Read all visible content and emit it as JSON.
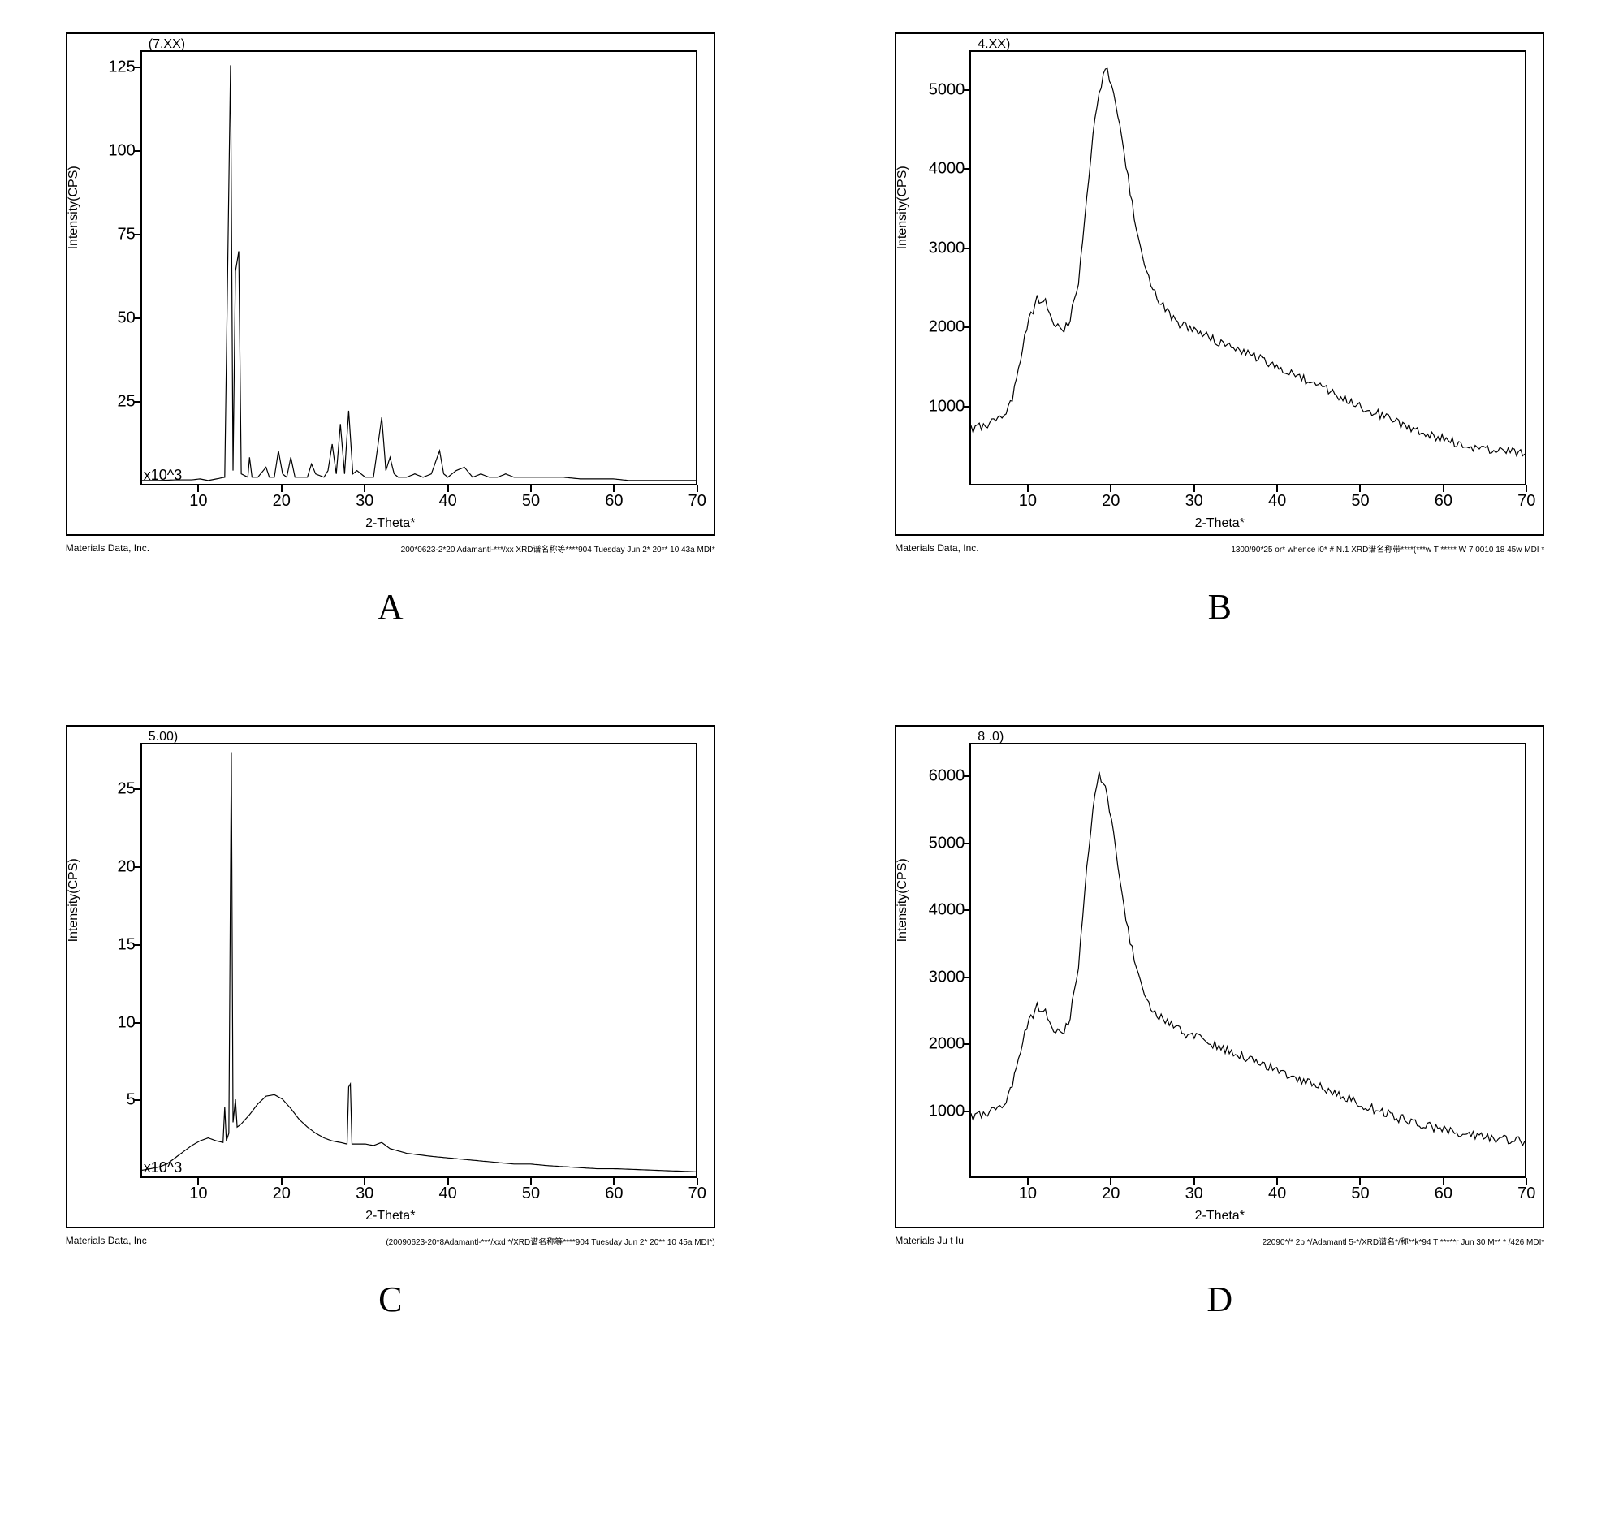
{
  "global": {
    "background_color": "#ffffff",
    "trace_color": "#000000",
    "border_color": "#000000",
    "font_family": "Arial",
    "figure_label_font": "Times New Roman",
    "figure_label_fontsize": 44,
    "tick_fontsize": 20,
    "axis_label_fontsize": 16
  },
  "panels": {
    "A": {
      "label": "A",
      "type": "xrd-line",
      "top_annotation": "(7.XX)",
      "xlabel": "2-Theta*",
      "ylabel": "Intensity(CPS)",
      "x_multiplier": "x10^3",
      "xlim": [
        3,
        70
      ],
      "ylim": [
        0,
        130
      ],
      "xticks": [
        10,
        20,
        30,
        40,
        50,
        60,
        70
      ],
      "yticks": [
        25,
        50,
        75,
        100,
        125
      ],
      "footer_left": "Materials Data, Inc.",
      "footer_right": "200*0623-2*20 Adamantl-***/xx XRD谱名称等****904 Tuesday Jun 2* 20** 10 43a MDI*",
      "trace": [
        [
          3,
          1
        ],
        [
          5,
          1
        ],
        [
          7,
          1.2
        ],
        [
          9,
          1.2
        ],
        [
          10,
          1.5
        ],
        [
          11,
          1
        ],
        [
          12,
          1.5
        ],
        [
          13,
          2
        ],
        [
          13.7,
          126
        ],
        [
          14,
          4
        ],
        [
          14.3,
          64
        ],
        [
          14.7,
          70
        ],
        [
          15,
          3
        ],
        [
          15.8,
          2
        ],
        [
          16,
          8
        ],
        [
          16.3,
          2
        ],
        [
          17,
          2
        ],
        [
          18,
          5
        ],
        [
          18.4,
          2
        ],
        [
          19,
          2
        ],
        [
          19.5,
          10
        ],
        [
          20,
          3
        ],
        [
          20.5,
          2
        ],
        [
          21,
          8
        ],
        [
          21.5,
          2
        ],
        [
          22,
          2
        ],
        [
          23,
          2
        ],
        [
          23.5,
          6
        ],
        [
          24,
          3
        ],
        [
          25,
          2
        ],
        [
          25.5,
          4
        ],
        [
          26,
          12
        ],
        [
          26.5,
          3
        ],
        [
          27,
          18
        ],
        [
          27.5,
          3
        ],
        [
          28,
          22
        ],
        [
          28.5,
          3
        ],
        [
          29,
          4
        ],
        [
          30,
          2
        ],
        [
          31,
          2
        ],
        [
          32,
          20
        ],
        [
          32.5,
          4
        ],
        [
          33,
          8
        ],
        [
          33.5,
          3
        ],
        [
          34,
          2
        ],
        [
          35,
          2
        ],
        [
          36,
          3
        ],
        [
          37,
          2
        ],
        [
          38,
          3
        ],
        [
          39,
          10
        ],
        [
          39.5,
          3
        ],
        [
          40,
          2
        ],
        [
          41,
          4
        ],
        [
          42,
          5
        ],
        [
          43,
          2
        ],
        [
          44,
          3
        ],
        [
          45,
          2
        ],
        [
          46,
          2
        ],
        [
          47,
          3
        ],
        [
          48,
          2
        ],
        [
          49,
          2
        ],
        [
          50,
          2
        ],
        [
          52,
          2
        ],
        [
          54,
          2
        ],
        [
          56,
          1.5
        ],
        [
          58,
          1.5
        ],
        [
          60,
          1.5
        ],
        [
          62,
          1
        ],
        [
          65,
          1
        ],
        [
          68,
          1
        ],
        [
          70,
          1
        ]
      ]
    },
    "B": {
      "label": "B",
      "type": "xrd-line",
      "top_annotation": "4.XX)",
      "xlabel": "2-Theta*",
      "ylabel": "Intensity(CPS)",
      "xlim": [
        3,
        70
      ],
      "ylim": [
        0,
        5500
      ],
      "xticks": [
        10,
        20,
        30,
        40,
        50,
        60,
        70
      ],
      "yticks": [
        1000,
        2000,
        3000,
        4000,
        5000
      ],
      "footer_left": "Materials Data, Inc.",
      "footer_right": "1300/90*25 or* whence i0* # N.1 XRD谱名称带****(***w T *****  W 7 0010 18 45w MDI *",
      "noise_amplitude": 120,
      "trace": [
        [
          3,
          700
        ],
        [
          5,
          750
        ],
        [
          6,
          800
        ],
        [
          7,
          900
        ],
        [
          8,
          1100
        ],
        [
          9,
          1600
        ],
        [
          10,
          2100
        ],
        [
          11,
          2350
        ],
        [
          12,
          2300
        ],
        [
          13,
          2050
        ],
        [
          14,
          1950
        ],
        [
          15,
          2100
        ],
        [
          16,
          2600
        ],
        [
          17,
          3600
        ],
        [
          18,
          4700
        ],
        [
          19,
          5200
        ],
        [
          19.5,
          5250
        ],
        [
          20,
          5100
        ],
        [
          21,
          4600
        ],
        [
          22,
          3900
        ],
        [
          23,
          3200
        ],
        [
          24,
          2800
        ],
        [
          25,
          2500
        ],
        [
          26,
          2300
        ],
        [
          27,
          2150
        ],
        [
          28,
          2050
        ],
        [
          30,
          1950
        ],
        [
          32,
          1850
        ],
        [
          34,
          1750
        ],
        [
          36,
          1680
        ],
        [
          38,
          1600
        ],
        [
          40,
          1500
        ],
        [
          42,
          1400
        ],
        [
          44,
          1300
        ],
        [
          46,
          1200
        ],
        [
          48,
          1100
        ],
        [
          50,
          1000
        ],
        [
          52,
          900
        ],
        [
          54,
          800
        ],
        [
          56,
          720
        ],
        [
          58,
          650
        ],
        [
          60,
          580
        ],
        [
          62,
          520
        ],
        [
          64,
          470
        ],
        [
          66,
          430
        ],
        [
          68,
          400
        ],
        [
          70,
          380
        ]
      ]
    },
    "C": {
      "label": "C",
      "type": "xrd-line",
      "top_annotation": "5.00)",
      "xlabel": "2-Theta*",
      "ylabel": "Intensity(CPS)",
      "x_multiplier": "x10^3",
      "xlim": [
        3,
        70
      ],
      "ylim": [
        0,
        28
      ],
      "xticks": [
        10,
        20,
        30,
        40,
        50,
        60,
        70
      ],
      "yticks": [
        5.0,
        10.0,
        15.0,
        20.0,
        25.0
      ],
      "footer_left": "Materials Data, Inc",
      "footer_right": "(20090623-20*8Adamantl-***/xxd */XRD谱名称等****904 Tuesday Jun 2* 20** 10 45a MDI*)",
      "trace": [
        [
          3,
          0.4
        ],
        [
          5,
          0.6
        ],
        [
          6,
          0.8
        ],
        [
          7,
          1.2
        ],
        [
          8,
          1.6
        ],
        [
          9,
          2.0
        ],
        [
          10,
          2.3
        ],
        [
          11,
          2.5
        ],
        [
          12,
          2.3
        ],
        [
          12.8,
          2.2
        ],
        [
          13,
          4.5
        ],
        [
          13.2,
          2.3
        ],
        [
          13.5,
          2.8
        ],
        [
          13.8,
          27.5
        ],
        [
          14,
          3.5
        ],
        [
          14.3,
          5
        ],
        [
          14.5,
          3.2
        ],
        [
          15,
          3.4
        ],
        [
          16,
          4.0
        ],
        [
          17,
          4.7
        ],
        [
          18,
          5.2
        ],
        [
          19,
          5.3
        ],
        [
          20,
          5.0
        ],
        [
          21,
          4.4
        ],
        [
          22,
          3.7
        ],
        [
          23,
          3.2
        ],
        [
          24,
          2.8
        ],
        [
          25,
          2.5
        ],
        [
          26,
          2.3
        ],
        [
          27,
          2.2
        ],
        [
          27.8,
          2.1
        ],
        [
          28,
          5.8
        ],
        [
          28.2,
          6.0
        ],
        [
          28.4,
          2.1
        ],
        [
          30,
          2.1
        ],
        [
          31,
          2.0
        ],
        [
          32,
          2.2
        ],
        [
          33,
          1.8
        ],
        [
          35,
          1.5
        ],
        [
          38,
          1.3
        ],
        [
          40,
          1.2
        ],
        [
          42,
          1.1
        ],
        [
          44,
          1.0
        ],
        [
          46,
          0.9
        ],
        [
          48,
          0.8
        ],
        [
          50,
          0.8
        ],
        [
          52,
          0.7
        ],
        [
          55,
          0.6
        ],
        [
          58,
          0.5
        ],
        [
          60,
          0.5
        ],
        [
          65,
          0.4
        ],
        [
          70,
          0.3
        ]
      ]
    },
    "D": {
      "label": "D",
      "type": "xrd-line",
      "top_annotation": "8 .0)",
      "xlabel": "2-Theta*",
      "ylabel": "Intensity(CPS)",
      "xlim": [
        3,
        70
      ],
      "ylim": [
        0,
        6500
      ],
      "xticks": [
        10,
        20,
        30,
        40,
        50,
        60,
        70
      ],
      "yticks": [
        1000,
        2000,
        3000,
        4000,
        5000,
        6000
      ],
      "footer_left": "Materials  Ju t  Iu",
      "footer_right": "22090*/* 2p */Adamantl  5-*/XRD谱名*/称**k*94 T *****r Jun 30 M** * /426 MDI*",
      "noise_amplitude": 140,
      "trace": [
        [
          3,
          900
        ],
        [
          5,
          950
        ],
        [
          6,
          1000
        ],
        [
          7,
          1100
        ],
        [
          8,
          1400
        ],
        [
          9,
          1900
        ],
        [
          10,
          2350
        ],
        [
          11,
          2550
        ],
        [
          12,
          2450
        ],
        [
          13,
          2200
        ],
        [
          14,
          2150
        ],
        [
          15,
          2400
        ],
        [
          16,
          3200
        ],
        [
          17,
          4600
        ],
        [
          18,
          5800
        ],
        [
          18.5,
          6050
        ],
        [
          19,
          5950
        ],
        [
          20,
          5400
        ],
        [
          21,
          4500
        ],
        [
          22,
          3700
        ],
        [
          23,
          3100
        ],
        [
          24,
          2750
        ],
        [
          25,
          2500
        ],
        [
          27,
          2300
        ],
        [
          29,
          2150
        ],
        [
          31,
          2050
        ],
        [
          33,
          1950
        ],
        [
          35,
          1850
        ],
        [
          37,
          1750
        ],
        [
          39,
          1650
        ],
        [
          41,
          1550
        ],
        [
          43,
          1450
        ],
        [
          45,
          1350
        ],
        [
          47,
          1250
        ],
        [
          49,
          1150
        ],
        [
          51,
          1050
        ],
        [
          53,
          950
        ],
        [
          55,
          870
        ],
        [
          57,
          800
        ],
        [
          59,
          740
        ],
        [
          61,
          680
        ],
        [
          63,
          630
        ],
        [
          65,
          590
        ],
        [
          67,
          560
        ],
        [
          69,
          540
        ],
        [
          70,
          530
        ]
      ]
    }
  }
}
